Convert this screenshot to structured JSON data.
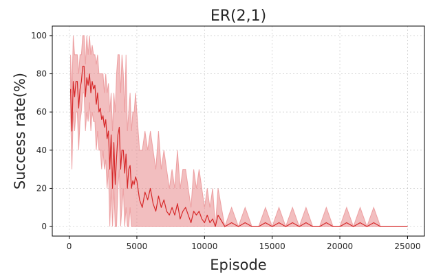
{
  "chart_data": {
    "type": "line",
    "title": "ER(2,1)",
    "xlabel": "Episode",
    "ylabel": "Success rate(%)",
    "xlim": [
      -1250,
      26250
    ],
    "ylim": [
      -5,
      105
    ],
    "xticks": [
      0,
      5000,
      10000,
      15000,
      20000,
      25000
    ],
    "yticks": [
      0,
      20,
      40,
      60,
      80,
      100
    ],
    "grid": true,
    "legend": "none",
    "colors": {
      "line": "#d62728",
      "band": "#e8888a"
    },
    "series": [
      {
        "x": [
          100,
          200,
          300,
          400,
          500,
          600,
          700,
          800,
          900,
          1000,
          1100,
          1200,
          1300,
          1400,
          1500,
          1600,
          1700,
          1800,
          1900,
          2000,
          2100,
          2200,
          2300,
          2400,
          2500,
          2600,
          2700,
          2800,
          2900,
          3000,
          3100,
          3200,
          3300,
          3400,
          3500,
          3600,
          3700,
          3800,
          3900,
          4000,
          4100,
          4200,
          4300,
          4400,
          4500,
          4600,
          4700,
          4800,
          4900,
          5000,
          5200,
          5400,
          5600,
          5800,
          6000,
          6200,
          6400,
          6600,
          6800,
          7000,
          7200,
          7400,
          7600,
          7800,
          8000,
          8200,
          8400,
          8600,
          8800,
          9000,
          9200,
          9400,
          9600,
          9800,
          10000,
          10200,
          10400,
          10600,
          10800,
          11000,
          11500,
          12000,
          12500,
          13000,
          13500,
          14000,
          14500,
          15000,
          15500,
          16000,
          16500,
          17000,
          17500,
          18000,
          18500,
          19000,
          19500,
          20000,
          20500,
          21000,
          21500,
          22000,
          22500,
          23000,
          23500,
          24000,
          24500,
          25000
        ],
        "values": [
          72,
          50,
          76,
          68,
          76,
          76,
          62,
          72,
          76,
          84,
          84,
          68,
          78,
          74,
          80,
          70,
          76,
          72,
          74,
          64,
          70,
          60,
          62,
          56,
          58,
          52,
          56,
          46,
          50,
          30,
          48,
          20,
          44,
          22,
          36,
          48,
          52,
          30,
          40,
          40,
          28,
          38,
          20,
          30,
          32,
          20,
          24,
          22,
          26,
          24,
          14,
          10,
          18,
          14,
          20,
          12,
          8,
          16,
          10,
          14,
          8,
          6,
          10,
          6,
          12,
          4,
          8,
          10,
          6,
          2,
          8,
          6,
          8,
          4,
          2,
          6,
          2,
          4,
          0,
          6,
          0,
          2,
          0,
          2,
          0,
          0,
          2,
          0,
          2,
          0,
          2,
          0,
          2,
          0,
          0,
          2,
          0,
          0,
          2,
          0,
          2,
          0,
          2,
          0,
          0,
          0,
          0,
          0
        ],
        "lower": [
          60,
          30,
          60,
          50,
          60,
          60,
          40,
          55,
          60,
          70,
          70,
          50,
          60,
          55,
          65,
          50,
          60,
          55,
          55,
          40,
          50,
          40,
          40,
          30,
          40,
          30,
          35,
          20,
          30,
          0,
          20,
          0,
          20,
          0,
          0,
          20,
          30,
          0,
          10,
          20,
          0,
          10,
          0,
          0,
          10,
          0,
          0,
          0,
          0,
          0,
          0,
          0,
          0,
          0,
          0,
          0,
          0,
          0,
          0,
          0,
          0,
          0,
          0,
          0,
          0,
          0,
          0,
          0,
          0,
          0,
          0,
          0,
          0,
          0,
          0,
          0,
          0,
          0,
          0,
          0,
          0,
          0,
          0,
          0,
          0,
          0,
          0,
          0,
          0,
          0,
          0,
          0,
          0,
          0,
          0,
          0,
          0,
          0,
          0,
          0,
          0,
          0,
          0,
          0,
          0,
          0,
          0,
          0
        ],
        "upper": [
          90,
          70,
          100,
          90,
          90,
          90,
          80,
          90,
          90,
          100,
          100,
          85,
          100,
          90,
          100,
          90,
          95,
          90,
          90,
          85,
          90,
          80,
          80,
          80,
          80,
          70,
          80,
          70,
          75,
          60,
          70,
          50,
          70,
          60,
          80,
          90,
          90,
          70,
          90,
          80,
          60,
          90,
          50,
          60,
          70,
          50,
          60,
          60,
          70,
          60,
          40,
          40,
          50,
          40,
          50,
          40,
          30,
          50,
          30,
          40,
          30,
          20,
          30,
          20,
          40,
          20,
          30,
          30,
          20,
          10,
          30,
          20,
          30,
          20,
          10,
          20,
          10,
          20,
          0,
          20,
          0,
          10,
          0,
          10,
          0,
          0,
          10,
          0,
          10,
          0,
          10,
          0,
          10,
          0,
          0,
          10,
          0,
          0,
          10,
          0,
          10,
          0,
          10,
          0,
          0,
          0,
          0,
          0
        ]
      }
    ]
  }
}
